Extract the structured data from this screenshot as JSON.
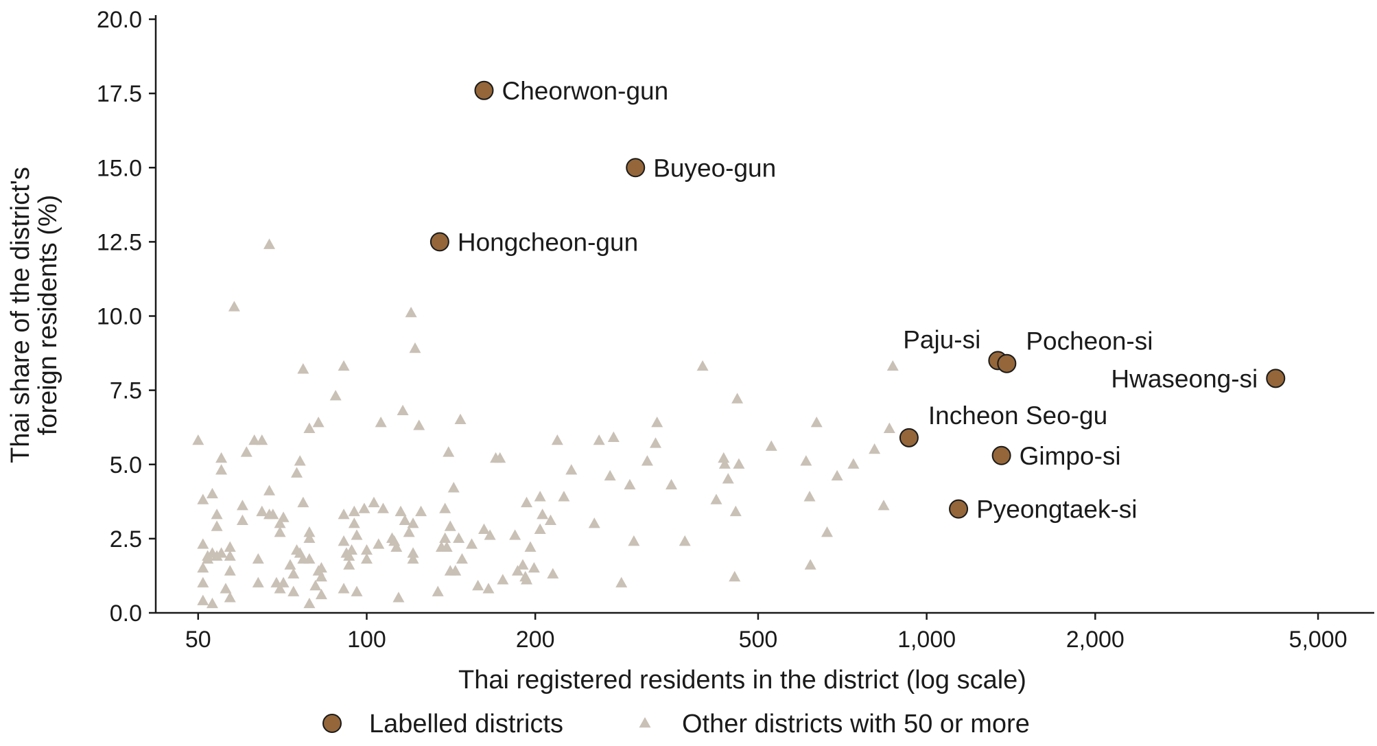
{
  "chart_data": {
    "type": "scatter",
    "xlabel": "Thai registered residents in the district (log scale)",
    "ylabel": "Thai share of the district's foreign residents (%)",
    "x_scale": "log",
    "xlim": [
      42,
      6300
    ],
    "ylim": [
      0,
      20
    ],
    "x_ticks": [
      50,
      100,
      200,
      500,
      1000,
      2000,
      5000
    ],
    "x_tick_labels": [
      "50",
      "100",
      "200",
      "500",
      "1,000",
      "2,000",
      "5,000"
    ],
    "y_ticks": [
      0,
      2.5,
      5,
      7.5,
      10,
      12.5,
      15,
      17.5,
      20
    ],
    "y_tick_labels": [
      "0.0",
      "2.5",
      "5.0",
      "7.5",
      "10.0",
      "12.5",
      "15.0",
      "17.5",
      "20.0"
    ],
    "grid": false,
    "legend_position": "bottom",
    "colors": {
      "labelled": "#946639",
      "other": "#c9c0b6",
      "axis": "#1a1a1a"
    },
    "series": [
      {
        "name": "Labelled districts",
        "marker": "circle",
        "points": [
          {
            "label": "Cheorwon-gun",
            "x": 162,
            "y": 17.6,
            "label_pos": "right"
          },
          {
            "label": "Buyeo-gun",
            "x": 302,
            "y": 15.0,
            "label_pos": "right"
          },
          {
            "label": "Hongcheon-gun",
            "x": 135,
            "y": 12.5,
            "label_pos": "right"
          },
          {
            "label": "Paju-si",
            "x": 1340,
            "y": 8.5,
            "label_pos": "upper-left"
          },
          {
            "label": "Pocheon-si",
            "x": 1390,
            "y": 8.4,
            "label_pos": "upper-right"
          },
          {
            "label": "Hwaseong-si",
            "x": 4200,
            "y": 7.9,
            "label_pos": "left"
          },
          {
            "label": "Incheon Seo-gu",
            "x": 930,
            "y": 5.9,
            "label_pos": "upper-right"
          },
          {
            "label": "Gimpo-si",
            "x": 1360,
            "y": 5.3,
            "label_pos": "right"
          },
          {
            "label": "Pyeongtaek-si",
            "x": 1140,
            "y": 3.5,
            "label_pos": "right"
          }
        ]
      },
      {
        "name": "Other districts with 50 or more",
        "marker": "triangle",
        "points": [
          [
            50,
            5.8
          ],
          [
            51,
            3.8
          ],
          [
            51,
            2.3
          ],
          [
            51,
            1.5
          ],
          [
            51,
            1.0
          ],
          [
            51,
            0.4
          ],
          [
            52,
            1.8
          ],
          [
            52,
            1.9
          ],
          [
            53,
            4.0
          ],
          [
            53,
            2.0
          ],
          [
            53,
            0.3
          ],
          [
            54,
            3.3
          ],
          [
            54,
            2.9
          ],
          [
            54,
            1.9
          ],
          [
            55,
            5.2
          ],
          [
            55,
            4.8
          ],
          [
            55,
            2.0
          ],
          [
            56,
            0.8
          ],
          [
            57,
            2.2
          ],
          [
            57,
            1.9
          ],
          [
            57,
            1.4
          ],
          [
            57,
            0.5
          ],
          [
            58,
            10.3
          ],
          [
            60,
            3.6
          ],
          [
            60,
            3.1
          ],
          [
            61,
            5.4
          ],
          [
            63,
            5.8
          ],
          [
            64,
            1.8
          ],
          [
            64,
            1.0
          ],
          [
            65,
            5.8
          ],
          [
            65,
            3.4
          ],
          [
            67,
            12.4
          ],
          [
            67,
            4.1
          ],
          [
            67,
            3.3
          ],
          [
            68,
            3.3
          ],
          [
            69,
            1.0
          ],
          [
            70,
            3.0
          ],
          [
            70,
            2.7
          ],
          [
            70,
            0.8
          ],
          [
            71,
            3.2
          ],
          [
            71,
            1.0
          ],
          [
            73,
            1.6
          ],
          [
            74,
            1.3
          ],
          [
            74,
            0.7
          ],
          [
            75,
            4.7
          ],
          [
            75,
            2.1
          ],
          [
            76,
            5.1
          ],
          [
            76,
            2.0
          ],
          [
            77,
            8.2
          ],
          [
            77,
            3.7
          ],
          [
            77,
            1.8
          ],
          [
            79,
            6.2
          ],
          [
            79,
            2.7
          ],
          [
            79,
            2.5
          ],
          [
            79,
            1.8
          ],
          [
            79,
            0.3
          ],
          [
            81,
            0.9
          ],
          [
            82,
            6.4
          ],
          [
            82,
            1.4
          ],
          [
            83,
            1.5
          ],
          [
            83,
            1.2
          ],
          [
            83,
            0.6
          ],
          [
            88,
            7.3
          ],
          [
            91,
            8.3
          ],
          [
            91,
            3.3
          ],
          [
            91,
            2.4
          ],
          [
            91,
            0.8
          ],
          [
            92,
            2.0
          ],
          [
            93,
            1.9
          ],
          [
            93,
            1.6
          ],
          [
            94,
            2.1
          ],
          [
            95,
            3.4
          ],
          [
            95,
            3.0
          ],
          [
            96,
            2.6
          ],
          [
            96,
            0.7
          ],
          [
            99,
            3.5
          ],
          [
            100,
            2.1
          ],
          [
            100,
            1.8
          ],
          [
            103,
            3.7
          ],
          [
            105,
            2.3
          ],
          [
            106,
            6.4
          ],
          [
            107,
            3.5
          ],
          [
            111,
            2.5
          ],
          [
            112,
            2.4
          ],
          [
            113,
            2.2
          ],
          [
            114,
            0.5
          ],
          [
            115,
            3.4
          ],
          [
            116,
            6.8
          ],
          [
            117,
            3.1
          ],
          [
            119,
            2.7
          ],
          [
            120,
            10.1
          ],
          [
            121,
            3.0
          ],
          [
            121,
            2.0
          ],
          [
            121,
            1.8
          ],
          [
            122,
            8.9
          ],
          [
            124,
            6.3
          ],
          [
            125,
            3.4
          ],
          [
            134,
            0.7
          ],
          [
            136,
            2.2
          ],
          [
            138,
            2.5
          ],
          [
            138,
            3.5
          ],
          [
            139,
            2.2
          ],
          [
            140,
            5.4
          ],
          [
            141,
            2.9
          ],
          [
            141,
            1.4
          ],
          [
            143,
            4.2
          ],
          [
            144,
            1.4
          ],
          [
            146,
            2.5
          ],
          [
            147,
            6.5
          ],
          [
            148,
            1.8
          ],
          [
            154,
            2.3
          ],
          [
            158,
            0.9
          ],
          [
            162,
            2.8
          ],
          [
            165,
            0.8
          ],
          [
            166,
            2.6
          ],
          [
            170,
            5.2
          ],
          [
            173,
            5.2
          ],
          [
            175,
            1.1
          ],
          [
            184,
            2.6
          ],
          [
            186,
            1.4
          ],
          [
            190,
            1.6
          ],
          [
            192,
            1.2
          ],
          [
            193,
            3.7
          ],
          [
            193,
            1.1
          ],
          [
            196,
            2.2
          ],
          [
            199,
            1.5
          ],
          [
            204,
            3.9
          ],
          [
            204,
            2.8
          ],
          [
            206,
            3.3
          ],
          [
            213,
            3.1
          ],
          [
            215,
            1.3
          ],
          [
            219,
            5.8
          ],
          [
            225,
            3.9
          ],
          [
            232,
            4.8
          ],
          [
            255,
            3.0
          ],
          [
            260,
            5.8
          ],
          [
            272,
            4.6
          ],
          [
            276,
            5.9
          ],
          [
            285,
            1.0
          ],
          [
            295,
            4.3
          ],
          [
            300,
            2.4
          ],
          [
            317,
            5.1
          ],
          [
            328,
            5.7
          ],
          [
            330,
            6.4
          ],
          [
            350,
            4.3
          ],
          [
            370,
            2.4
          ],
          [
            398,
            8.3
          ],
          [
            421,
            3.8
          ],
          [
            434,
            5.2
          ],
          [
            436,
            5.0
          ],
          [
            442,
            4.5
          ],
          [
            454,
            1.2
          ],
          [
            456,
            3.4
          ],
          [
            459,
            7.2
          ],
          [
            462,
            5.0
          ],
          [
            528,
            5.6
          ],
          [
            609,
            5.1
          ],
          [
            618,
            3.9
          ],
          [
            620,
            1.6
          ],
          [
            636,
            6.4
          ],
          [
            664,
            2.7
          ],
          [
            692,
            4.6
          ],
          [
            740,
            5.0
          ],
          [
            807,
            5.5
          ],
          [
            838,
            3.6
          ],
          [
            858,
            6.2
          ],
          [
            870,
            8.3
          ]
        ]
      }
    ]
  }
}
